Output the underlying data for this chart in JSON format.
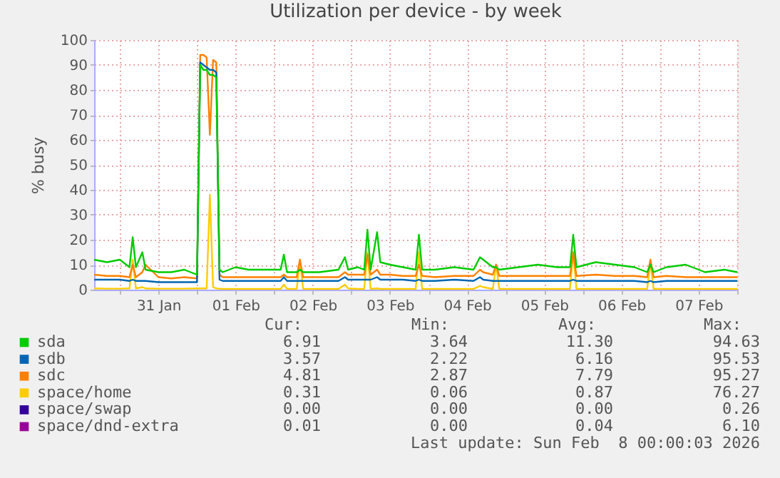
{
  "chart_data": {
    "type": "line",
    "title": "Utilization per device - by week",
    "ylabel": "% busy",
    "x": [
      "2026-01-30T16:00",
      "2026-01-30T20:00",
      "2026-01-31T00:00",
      "2026-01-31T03:00",
      "2026-01-31T04:00",
      "2026-01-31T05:00",
      "2026-01-31T07:00",
      "2026-01-31T08:00",
      "2026-01-31T12:00",
      "2026-01-31T16:00",
      "2026-01-31T20:00",
      "2026-02-01T00:00",
      "2026-02-01T01:00",
      "2026-02-01T02:00",
      "2026-02-01T03:00",
      "2026-02-01T04:00",
      "2026-02-01T05:00",
      "2026-02-01T06:00",
      "2026-02-01T07:00",
      "2026-02-01T08:00",
      "2026-02-01T12:00",
      "2026-02-01T16:00",
      "2026-02-01T20:00",
      "2026-02-02T02:00",
      "2026-02-02T03:00",
      "2026-02-02T04:00",
      "2026-02-02T07:00",
      "2026-02-02T08:00",
      "2026-02-02T09:00",
      "2026-02-02T14:00",
      "2026-02-02T20:00",
      "2026-02-02T22:00",
      "2026-02-02T23:00",
      "2026-02-03T02:00",
      "2026-02-03T04:00",
      "2026-02-03T05:00",
      "2026-02-03T06:00",
      "2026-02-03T08:00",
      "2026-02-03T09:00",
      "2026-02-03T12:00",
      "2026-02-03T16:00",
      "2026-02-03T20:00",
      "2026-02-03T21:00",
      "2026-02-03T22:00",
      "2026-02-04T02:00",
      "2026-02-04T08:00",
      "2026-02-04T14:00",
      "2026-02-04T16:00",
      "2026-02-04T17:00",
      "2026-02-04T20:00",
      "2026-02-04T21:00",
      "2026-02-04T22:00",
      "2026-02-05T04:00",
      "2026-02-05T10:00",
      "2026-02-05T16:00",
      "2026-02-05T20:00",
      "2026-02-05T21:00",
      "2026-02-05T22:00",
      "2026-02-06T04:00",
      "2026-02-06T10:00",
      "2026-02-06T16:00",
      "2026-02-06T20:00",
      "2026-02-06T21:00",
      "2026-02-06T22:00",
      "2026-02-07T02:00",
      "2026-02-07T08:00",
      "2026-02-07T14:00",
      "2026-02-07T20:00",
      "2026-02-08T00:00"
    ],
    "series": [
      {
        "name": "sda",
        "color": "#00cc00",
        "values": [
          12,
          11,
          12,
          9,
          21,
          9,
          15,
          8,
          7,
          7,
          8,
          6,
          90,
          88,
          88,
          86,
          86,
          85,
          8,
          7,
          9,
          8,
          8,
          8,
          14,
          7,
          7,
          8,
          7,
          7,
          8,
          13,
          8,
          9,
          8,
          24,
          8,
          23,
          11,
          10,
          9,
          8,
          22,
          8,
          8,
          9,
          8,
          13,
          12,
          9,
          9,
          8,
          9,
          10,
          9,
          9,
          22,
          9,
          11,
          10,
          9,
          7,
          10,
          7,
          9,
          10,
          7,
          8,
          7
        ]
      },
      {
        "name": "sdb",
        "color": "#0066b3",
        "values": [
          4,
          4,
          4,
          3.5,
          4,
          3.5,
          3.5,
          3.5,
          3,
          3,
          3,
          3,
          91,
          90,
          89,
          88,
          88,
          87,
          4,
          3.5,
          3.5,
          3.5,
          3.5,
          3.5,
          5,
          3.5,
          3.5,
          3.5,
          3.5,
          3.5,
          3.5,
          5,
          4,
          4,
          4,
          4,
          4,
          5,
          4,
          4,
          4,
          3.5,
          4,
          3.5,
          3.5,
          4,
          3.5,
          5,
          4,
          3.5,
          3.5,
          3.5,
          3.5,
          3.5,
          3.5,
          3.5,
          4,
          3.5,
          3.5,
          3.5,
          3.5,
          3,
          3.5,
          3,
          3.5,
          3.5,
          3.5,
          3.5,
          3.5
        ]
      },
      {
        "name": "sdc",
        "color": "#ff8000",
        "values": [
          6,
          5.5,
          5.5,
          5,
          10,
          5,
          7,
          10,
          5,
          4.5,
          5,
          4.5,
          94,
          94,
          93,
          62,
          92,
          91,
          6,
          5,
          5,
          5,
          5,
          5,
          6,
          5,
          5,
          12,
          5,
          5,
          5,
          7,
          6,
          6,
          6,
          14,
          6,
          8,
          6,
          6,
          5.5,
          5.5,
          10,
          5.5,
          5,
          5.5,
          5.5,
          8,
          7,
          6,
          10,
          5.5,
          5.5,
          5.5,
          5.5,
          5.5,
          15,
          5.5,
          6,
          5.5,
          5.5,
          5,
          12,
          5,
          5.5,
          5,
          5,
          5,
          5
        ]
      },
      {
        "name": "space/home",
        "color": "#ffcc00",
        "values": [
          0.5,
          0.4,
          0.4,
          0.5,
          12,
          0.5,
          1,
          0.5,
          0.4,
          0.4,
          0.4,
          0.5,
          0.5,
          0.5,
          0.5,
          38,
          1,
          0.5,
          0.4,
          0.3,
          0.3,
          0.3,
          0.3,
          0.3,
          2,
          0.3,
          0.3,
          12,
          0.3,
          0.3,
          0.3,
          2,
          0.5,
          0.3,
          0.3,
          15,
          0.3,
          0.5,
          0.3,
          0.3,
          0.3,
          0.3,
          15,
          0.3,
          0.3,
          0.3,
          0.3,
          1.5,
          1,
          0.3,
          10,
          0.3,
          0.3,
          0.3,
          0.3,
          0.3,
          15,
          0.3,
          0.3,
          0.3,
          0.3,
          0.3,
          11,
          0.3,
          0.3,
          0.3,
          0.3,
          0.3,
          0.3
        ]
      },
      {
        "name": "space/swap",
        "color": "#330099",
        "values": [
          null,
          null,
          null,
          null,
          null,
          null,
          null,
          null,
          null,
          null,
          null,
          null,
          null,
          null,
          null,
          null,
          null,
          null,
          null,
          null,
          null,
          null,
          null,
          null,
          null,
          null,
          null,
          null,
          null,
          null,
          null,
          null,
          null,
          null,
          null,
          null,
          null,
          null,
          null,
          null,
          null,
          null,
          null,
          null,
          null,
          null,
          null,
          null,
          null,
          null,
          null,
          null,
          null,
          null,
          null,
          null,
          null,
          null,
          null,
          null,
          null,
          null,
          null,
          null,
          null,
          null,
          null,
          null,
          null
        ]
      },
      {
        "name": "space/dnd-extra",
        "color": "#990099",
        "values": [
          null,
          null,
          null,
          null,
          null,
          null,
          null,
          null,
          null,
          null,
          null,
          null,
          null,
          null,
          null,
          null,
          null,
          null,
          null,
          null,
          null,
          null,
          null,
          null,
          null,
          null,
          null,
          null,
          null,
          null,
          null,
          null,
          null,
          null,
          null,
          null,
          null,
          null,
          null,
          null,
          null,
          null,
          null,
          null,
          null,
          null,
          null,
          null,
          null,
          null,
          null,
          null,
          null,
          null,
          null,
          null,
          null,
          null,
          null,
          null,
          null,
          null,
          null,
          null,
          null,
          null,
          null,
          null,
          null
        ]
      }
    ],
    "xlim": [
      "2026-01-30T16:00",
      "2026-02-08T00:00"
    ],
    "xticks": [
      {
        "value": "2026-01-31T00:00",
        "label": null
      },
      {
        "value": "2026-01-31T12:00",
        "label": "31 Jan"
      },
      {
        "value": "2026-02-01T00:00",
        "label": null
      },
      {
        "value": "2026-02-01T12:00",
        "label": "01 Feb"
      },
      {
        "value": "2026-02-02T00:00",
        "label": null
      },
      {
        "value": "2026-02-02T12:00",
        "label": "02 Feb"
      },
      {
        "value": "2026-02-03T00:00",
        "label": null
      },
      {
        "value": "2026-02-03T12:00",
        "label": "03 Feb"
      },
      {
        "value": "2026-02-04T00:00",
        "label": null
      },
      {
        "value": "2026-02-04T12:00",
        "label": "04 Feb"
      },
      {
        "value": "2026-02-05T00:00",
        "label": null
      },
      {
        "value": "2026-02-05T12:00",
        "label": "05 Feb"
      },
      {
        "value": "2026-02-06T00:00",
        "label": null
      },
      {
        "value": "2026-02-06T12:00",
        "label": "06 Feb"
      },
      {
        "value": "2026-02-07T00:00",
        "label": null
      },
      {
        "value": "2026-02-07T12:00",
        "label": "07 Feb"
      },
      {
        "value": "2026-02-08T00:00",
        "label": null
      }
    ],
    "ylim": [
      0,
      100
    ],
    "yticks": [
      0,
      10,
      20,
      30,
      40,
      50,
      60,
      70,
      80,
      90,
      100
    ],
    "grid": true,
    "legend": "bottom",
    "marker": "none",
    "line_style": "solid",
    "annotations": [
      "Cur:",
      "Min:",
      "Avg:",
      "Max:",
      "6.91",
      "3.64",
      "11.30",
      "94.63",
      "3.57",
      "2.22",
      "6.16",
      "95.53",
      "4.81",
      "2.87",
      "7.79",
      "95.27",
      "0.31",
      "0.06",
      "0.87",
      "76.27",
      "0.00",
      "0.00",
      "0.00",
      "0.26",
      "0.01",
      "0.00",
      "0.04",
      "6.10",
      "Last update: Sun Feb  8 00:00:03 2026"
    ]
  }
}
